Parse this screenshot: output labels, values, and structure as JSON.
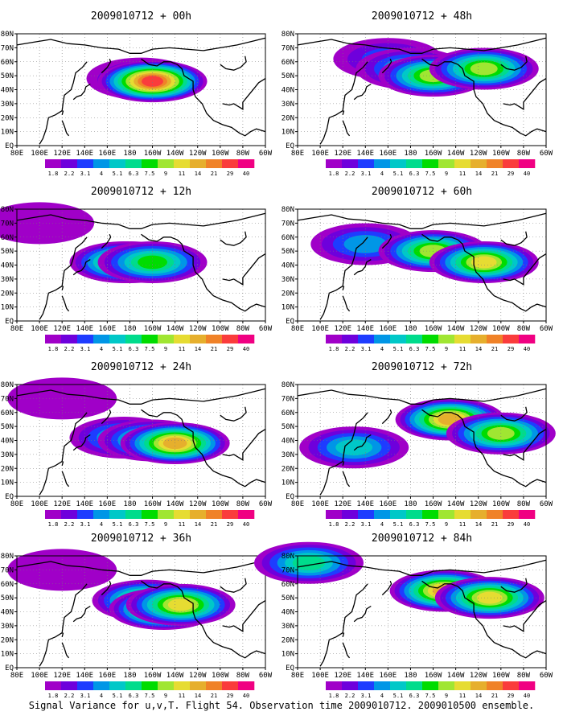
{
  "caption": "Signal Variance for u,v,T. Flight 54. Observation time 2009010712. 2009010500 ensemble.",
  "lon_labels": [
    "80E",
    "100E",
    "120E",
    "140E",
    "160E",
    "180",
    "160W",
    "140W",
    "120W",
    "100W",
    "80W",
    "60W"
  ],
  "lat_labels": [
    "80N",
    "70N",
    "60N",
    "50N",
    "40N",
    "30N",
    "20N",
    "10N",
    "EQ"
  ],
  "colorbar": {
    "labels": [
      "1.8",
      "2.2",
      "3.1",
      "4",
      "5.1",
      "6.3",
      "7.5",
      "9",
      "11",
      "14",
      "21",
      "29",
      "40"
    ],
    "colors": [
      "#a000c8",
      "#6e00dc",
      "#1e3cff",
      "#0096e6",
      "#00c8c8",
      "#00dc8c",
      "#00dc00",
      "#a0e632",
      "#e6dc32",
      "#e6af2d",
      "#f08228",
      "#fa3c3c",
      "#f00082"
    ]
  },
  "panels": [
    {
      "title": "2009010712 + 00h"
    },
    {
      "title": "2009010712 + 48h"
    },
    {
      "title": "2009010712 + 12h"
    },
    {
      "title": "2009010712 + 60h"
    },
    {
      "title": "2009010712 + 24h"
    },
    {
      "title": "2009010712 + 72h"
    },
    {
      "title": "2009010712 + 36h"
    },
    {
      "title": "2009010712 + 84h"
    }
  ],
  "panel_fields": {
    "2009010712 + 00h": [
      {
        "lon": 190,
        "lat": 48,
        "level": 3
      },
      {
        "lon": 195,
        "lat": 47,
        "level": 8
      },
      {
        "lon": 200,
        "lat": 46,
        "level": 11
      }
    ],
    "2009010712 + 12h": [
      {
        "lon": 100,
        "lat": 70,
        "level": 0
      },
      {
        "lon": 180,
        "lat": 42,
        "level": 3
      },
      {
        "lon": 175,
        "lat": 42,
        "level": 7
      },
      {
        "lon": 200,
        "lat": 42,
        "level": 6
      }
    ],
    "2009010712 + 24h": [
      {
        "lon": 120,
        "lat": 70,
        "level": 0
      },
      {
        "lon": 175,
        "lat": 42,
        "level": 4
      },
      {
        "lon": 200,
        "lat": 40,
        "level": 6
      },
      {
        "lon": 220,
        "lat": 38,
        "level": 9
      }
    ],
    "2009010712 + 36h": [
      {
        "lon": 120,
        "lat": 70,
        "level": 0
      },
      {
        "lon": 195,
        "lat": 48,
        "level": 7
      },
      {
        "lon": 210,
        "lat": 42,
        "level": 9
      },
      {
        "lon": 225,
        "lat": 45,
        "level": 8
      }
    ],
    "2009010712 + 48h": [
      {
        "lon": 160,
        "lat": 62,
        "level": 2
      },
      {
        "lon": 180,
        "lat": 55,
        "level": 4
      },
      {
        "lon": 200,
        "lat": 50,
        "level": 7
      },
      {
        "lon": 245,
        "lat": 55,
        "level": 7
      }
    ],
    "2009010712 + 60h": [
      {
        "lon": 140,
        "lat": 55,
        "level": 3
      },
      {
        "lon": 200,
        "lat": 50,
        "level": 7
      },
      {
        "lon": 245,
        "lat": 42,
        "level": 8
      }
    ],
    "2009010712 + 72h": [
      {
        "lon": 130,
        "lat": 35,
        "level": 4
      },
      {
        "lon": 215,
        "lat": 55,
        "level": 9
      },
      {
        "lon": 260,
        "lat": 45,
        "level": 7
      }
    ],
    "2009010712 + 84h": [
      {
        "lon": 90,
        "lat": 75,
        "level": 5
      },
      {
        "lon": 210,
        "lat": 55,
        "level": 9
      },
      {
        "lon": 250,
        "lat": 50,
        "level": 8
      }
    ]
  }
}
